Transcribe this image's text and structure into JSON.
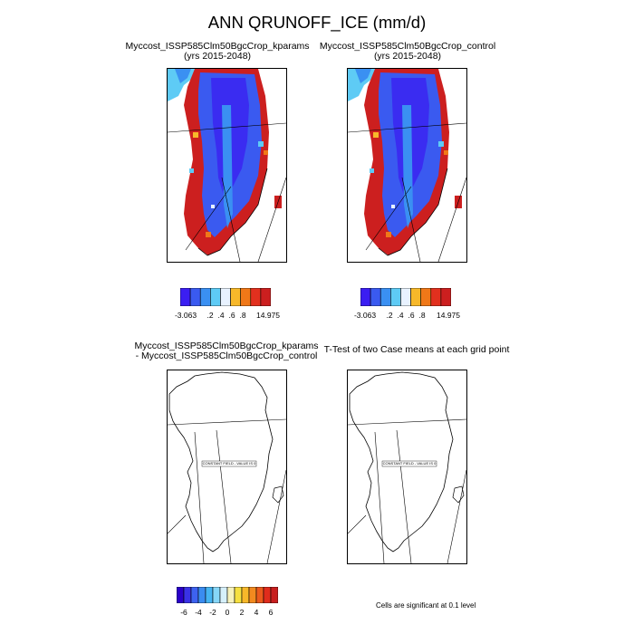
{
  "title": "ANN QRUNOFF_ICE (mm/d)",
  "panels": [
    {
      "line1": "Myccost_ISSP585Clm50BgcCrop_kparams",
      "line2": "(yrs 2015-2048)"
    },
    {
      "line1": "Myccost_ISSP585Clm50BgcCrop_control",
      "line2": "(yrs 2015-2048)"
    },
    {
      "line1": "Myccost_ISSP585Clm50BgcCrop_kparams",
      "line2": "- Myccost_ISSP585Clm50BgcCrop_control"
    },
    {
      "line1": "T-Test of two Case means at each grid point",
      "line2": ""
    }
  ],
  "map_labels": {
    "diff": "CONSTANT FIELD - VALUE IS 0",
    "ttest": "CONSTANT FIELD - VALUE IS 0"
  },
  "colorbar_top": {
    "colors": [
      "#3b1ef2",
      "#3a5af0",
      "#3a90f2",
      "#5ecbf5",
      "#e8f2ff",
      "#f7b82a",
      "#f07818",
      "#e2301e",
      "#cc1f1f"
    ],
    "labels": [
      "-3.063",
      ".2",
      ".4",
      ".6",
      ".8",
      "14.975"
    ]
  },
  "colorbar_bottom": {
    "colors": [
      "#2a00c8",
      "#3a32e6",
      "#3d62f0",
      "#3a8cf0",
      "#45b4f2",
      "#86d6f7",
      "#d6f0fb",
      "#f7f2bc",
      "#f6e040",
      "#f7b82a",
      "#f28a1f",
      "#eb5a1c",
      "#e02c1c",
      "#c81e1e"
    ],
    "labels": [
      "-6",
      "-4",
      "-2",
      "0",
      "2",
      "4",
      "6"
    ]
  },
  "note": "Cells are significant at 0.1 level"
}
